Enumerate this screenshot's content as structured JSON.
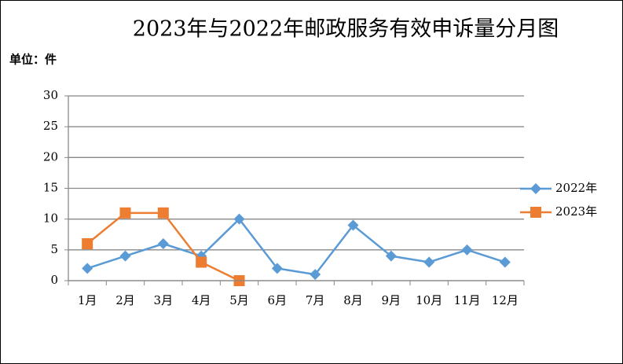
{
  "chart_data": {
    "type": "line",
    "title": "2023年与2022年邮政服务有效申诉量分月图",
    "y_label": "单位：件",
    "categories": [
      "1月",
      "2月",
      "3月",
      "4月",
      "5月",
      "6月",
      "7月",
      "8月",
      "9月",
      "10月",
      "11月",
      "12月"
    ],
    "series": [
      {
        "name": "2022年",
        "color": "#5b9bd5",
        "marker": "diamond",
        "values": [
          2,
          4,
          6,
          4,
          10,
          2,
          1,
          9,
          4,
          3,
          5,
          3
        ]
      },
      {
        "name": "2023年",
        "color": "#ed7d31",
        "marker": "square",
        "values": [
          6,
          11,
          11,
          3,
          0,
          null,
          null,
          null,
          null,
          null,
          null,
          null
        ]
      }
    ],
    "ylim": [
      0,
      30
    ],
    "yticks": [
      0,
      5,
      10,
      15,
      20,
      25,
      30
    ],
    "grid": true,
    "legend": "right"
  }
}
